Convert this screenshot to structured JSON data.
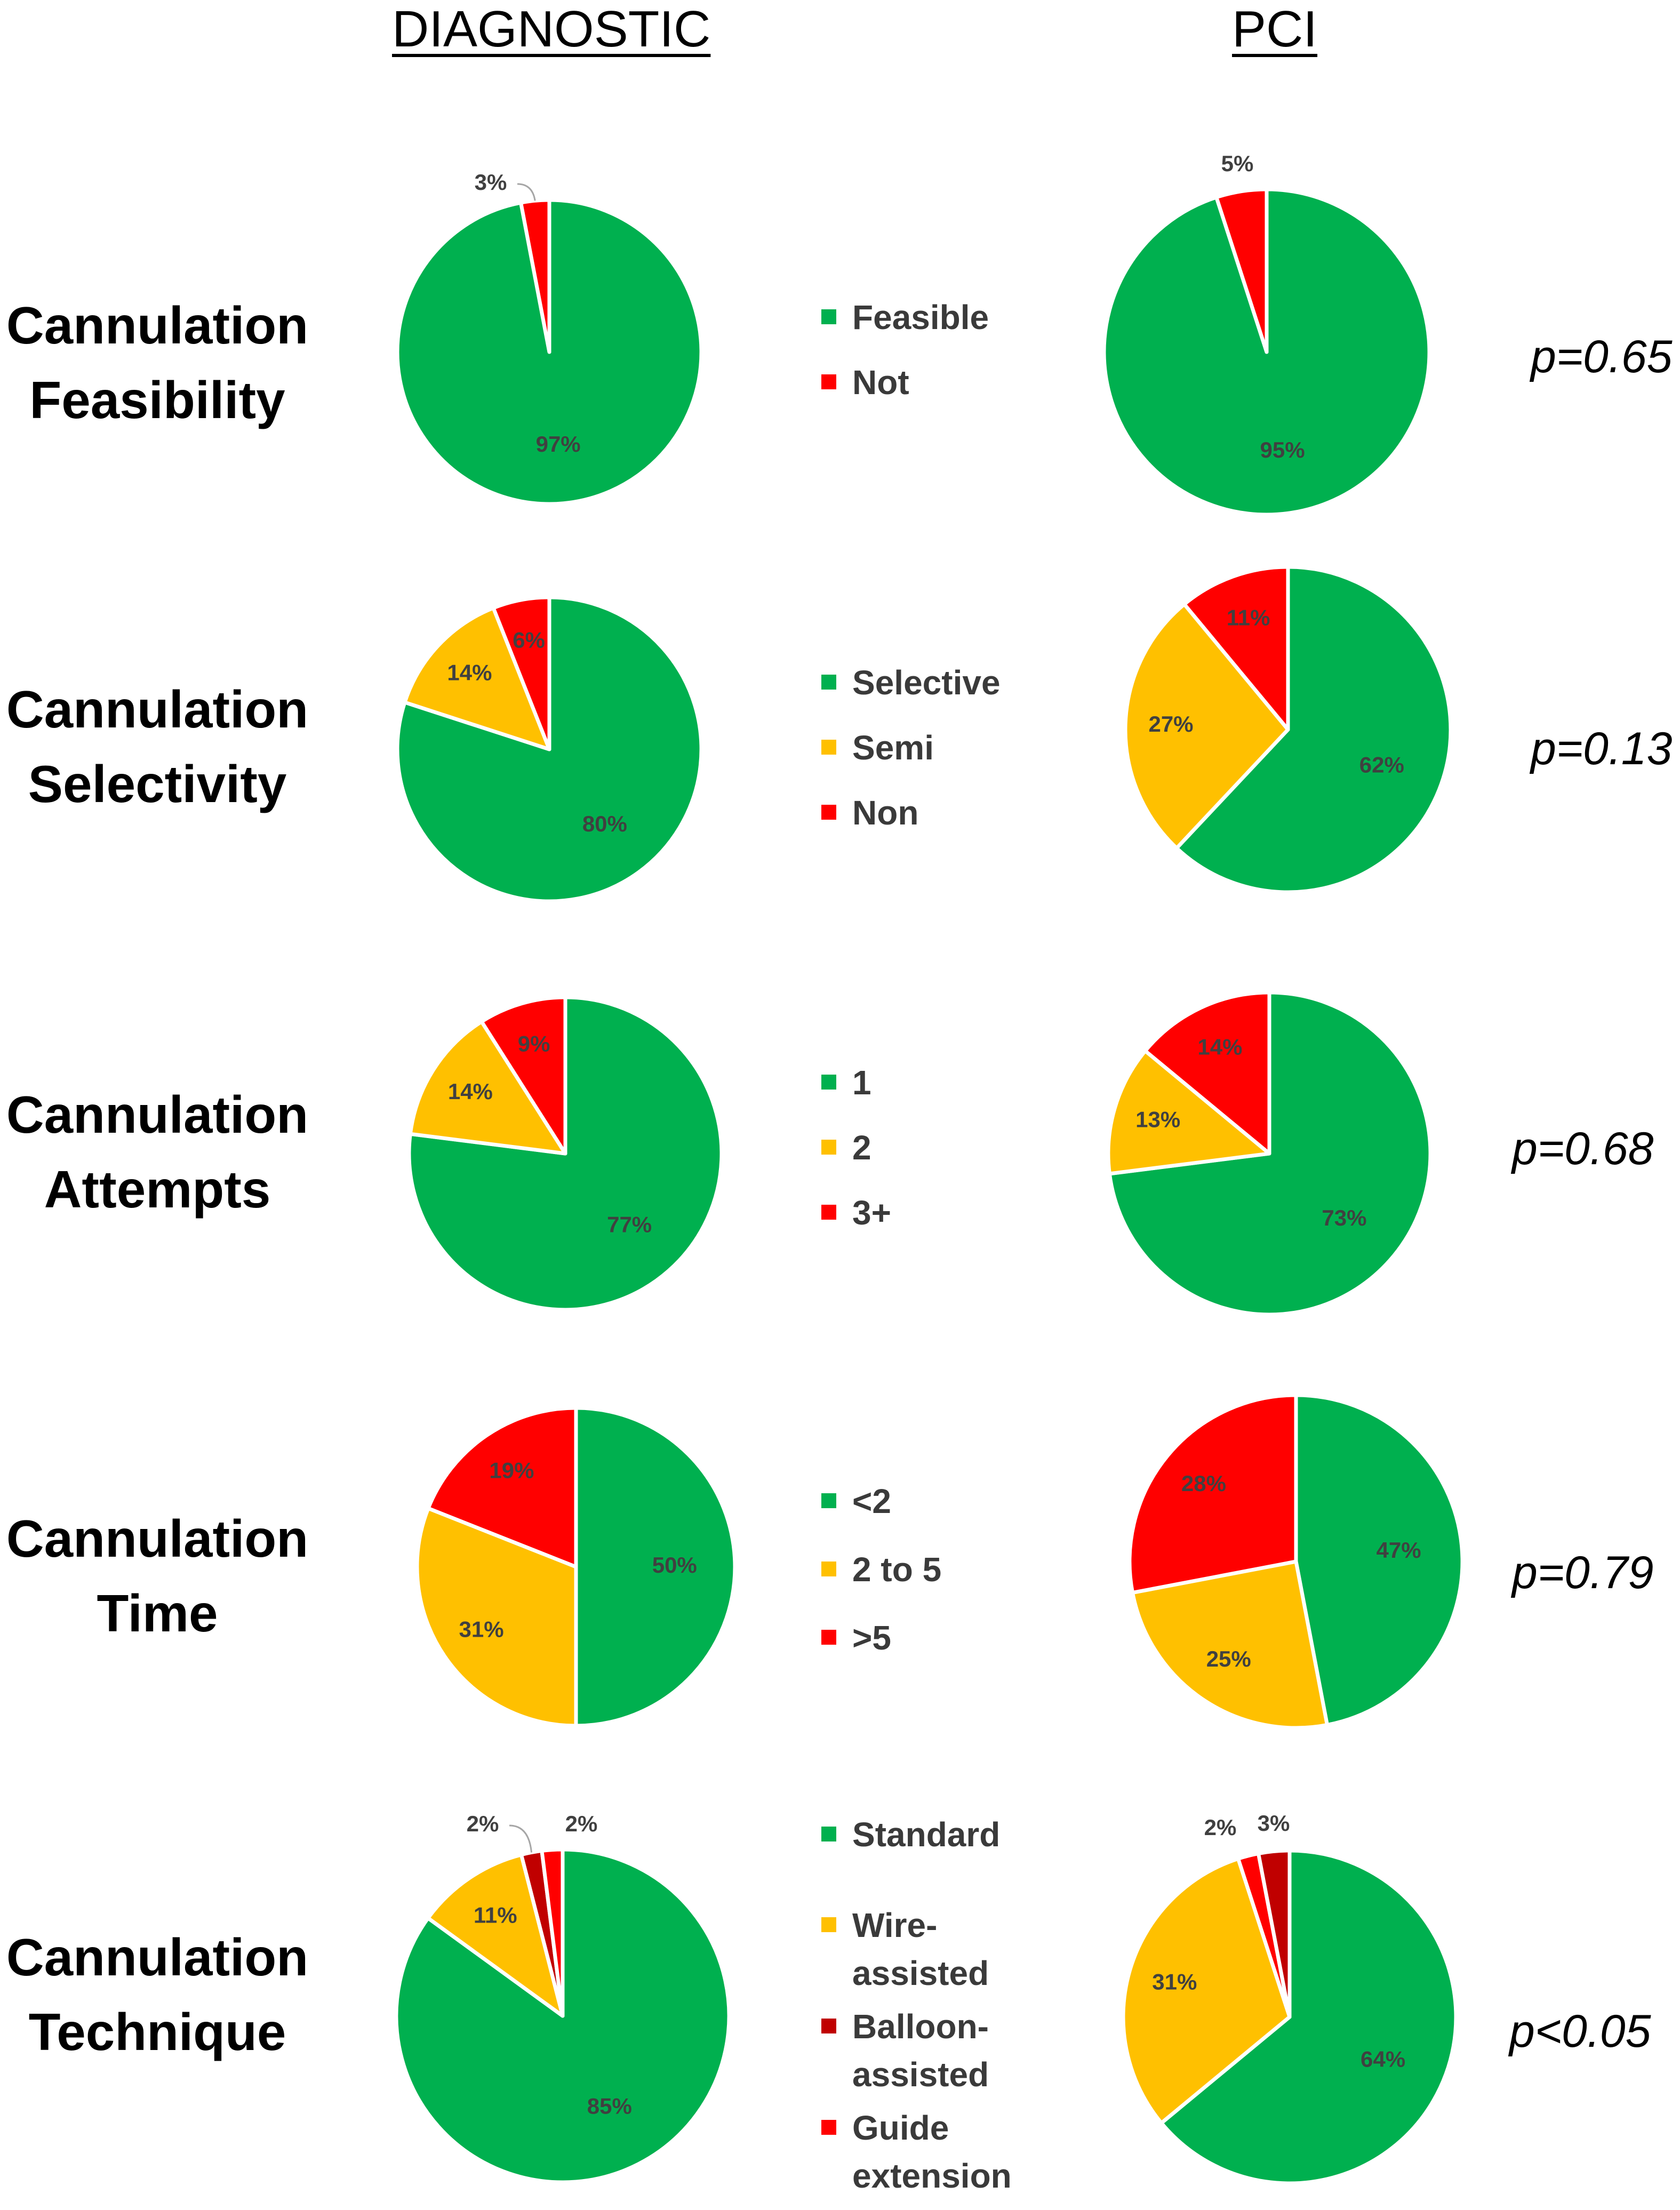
{
  "headers": {
    "diagnostic": "DIAGNOSTIC",
    "pci": "PCI"
  },
  "colors": {
    "green": "#00b04f",
    "yellow": "#ffc000",
    "red": "#ff0000",
    "darkred": "#c00000",
    "label": "#404040"
  },
  "rows": [
    {
      "label_lines": [
        "Cannulation",
        "Feasibility"
      ],
      "p_value": "p=0.65",
      "legend": [
        {
          "lines": [
            "Feasible"
          ],
          "color": "green"
        },
        {
          "lines": [
            "Not"
          ],
          "color": "red"
        }
      ]
    },
    {
      "label_lines": [
        "Cannulation",
        "Selectivity"
      ],
      "p_value": "p=0.13",
      "legend": [
        {
          "lines": [
            "Selective"
          ],
          "color": "green"
        },
        {
          "lines": [
            "Semi"
          ],
          "color": "yellow"
        },
        {
          "lines": [
            "Non"
          ],
          "color": "red"
        }
      ]
    },
    {
      "label_lines": [
        "Cannulation",
        "Attempts"
      ],
      "p_value": "p=0.68",
      "legend": [
        {
          "lines": [
            "1"
          ],
          "color": "green"
        },
        {
          "lines": [
            "2"
          ],
          "color": "yellow"
        },
        {
          "lines": [
            "3+"
          ],
          "color": "red"
        }
      ]
    },
    {
      "label_lines": [
        "Cannulation",
        "Time"
      ],
      "p_value": "p=0.79",
      "legend": [
        {
          "lines": [
            "<2"
          ],
          "color": "green"
        },
        {
          "lines": [
            "2 to 5"
          ],
          "color": "yellow"
        },
        {
          "lines": [
            ">5"
          ],
          "color": "red"
        }
      ]
    },
    {
      "label_lines": [
        "Cannulation",
        "Technique"
      ],
      "p_value": "p<0.05",
      "legend": [
        {
          "lines": [
            "Standard"
          ],
          "color": "green"
        },
        {
          "lines": [
            "Wire-",
            "assisted"
          ],
          "color": "yellow"
        },
        {
          "lines": [
            "Balloon-",
            "assisted"
          ],
          "color": "darkred"
        },
        {
          "lines": [
            "Guide",
            "extension"
          ],
          "color": "red"
        }
      ]
    }
  ],
  "chart_data": [
    {
      "type": "pie",
      "title": "Cannulation Feasibility - DIAGNOSTIC",
      "categories": [
        "Feasible",
        "Not"
      ],
      "values": [
        97,
        3
      ],
      "labels": [
        "97%",
        "3%"
      ],
      "colors": [
        "green",
        "red"
      ]
    },
    {
      "type": "pie",
      "title": "Cannulation Feasibility - PCI",
      "categories": [
        "Feasible",
        "Not"
      ],
      "values": [
        95,
        5
      ],
      "labels": [
        "95%",
        "5%"
      ],
      "colors": [
        "green",
        "red"
      ]
    },
    {
      "type": "pie",
      "title": "Cannulation Selectivity - DIAGNOSTIC",
      "categories": [
        "Selective",
        "Semi",
        "Non"
      ],
      "values": [
        80,
        14,
        6
      ],
      "labels": [
        "80%",
        "14%",
        "6%"
      ],
      "colors": [
        "green",
        "yellow",
        "red"
      ]
    },
    {
      "type": "pie",
      "title": "Cannulation Selectivity - PCI",
      "categories": [
        "Selective",
        "Semi",
        "Non"
      ],
      "values": [
        62,
        27,
        11
      ],
      "labels": [
        "62%",
        "27%",
        "11%"
      ],
      "colors": [
        "green",
        "yellow",
        "red"
      ]
    },
    {
      "type": "pie",
      "title": "Cannulation Attempts - DIAGNOSTIC",
      "categories": [
        "1",
        "2",
        "3+"
      ],
      "values": [
        77,
        14,
        9
      ],
      "labels": [
        "77%",
        "14%",
        "9%"
      ],
      "colors": [
        "green",
        "yellow",
        "red"
      ]
    },
    {
      "type": "pie",
      "title": "Cannulation Attempts - PCI",
      "categories": [
        "1",
        "2",
        "3+"
      ],
      "values": [
        73,
        13,
        14
      ],
      "labels": [
        "73%",
        "13%",
        "14%"
      ],
      "colors": [
        "green",
        "yellow",
        "red"
      ]
    },
    {
      "type": "pie",
      "title": "Cannulation Time - DIAGNOSTIC",
      "categories": [
        "<2",
        "2 to 5",
        ">5"
      ],
      "values": [
        50,
        31,
        19
      ],
      "labels": [
        "50%",
        "31%",
        "19%"
      ],
      "colors": [
        "green",
        "yellow",
        "red"
      ]
    },
    {
      "type": "pie",
      "title": "Cannulation Time - PCI",
      "categories": [
        "<2",
        "2 to 5",
        ">5"
      ],
      "values": [
        47,
        25,
        28
      ],
      "labels": [
        "47%",
        "25%",
        "28%"
      ],
      "colors": [
        "green",
        "yellow",
        "red"
      ]
    },
    {
      "type": "pie",
      "title": "Cannulation Technique - DIAGNOSTIC",
      "categories": [
        "Standard",
        "Wire-assisted",
        "Balloon-assisted",
        "Guide extension"
      ],
      "values": [
        85,
        11,
        2,
        2
      ],
      "labels": [
        "85%",
        "11%",
        "2%",
        "2%"
      ],
      "colors": [
        "green",
        "yellow",
        "darkred",
        "red"
      ]
    },
    {
      "type": "pie",
      "title": "Cannulation Technique - PCI",
      "categories": [
        "Standard",
        "Wire-assisted",
        "Guide extension",
        "Balloon-assisted"
      ],
      "values": [
        64,
        31,
        2,
        3
      ],
      "labels": [
        "64%",
        "31%",
        "2%",
        "3%"
      ],
      "colors": [
        "green",
        "yellow",
        "red",
        "darkred"
      ]
    }
  ]
}
